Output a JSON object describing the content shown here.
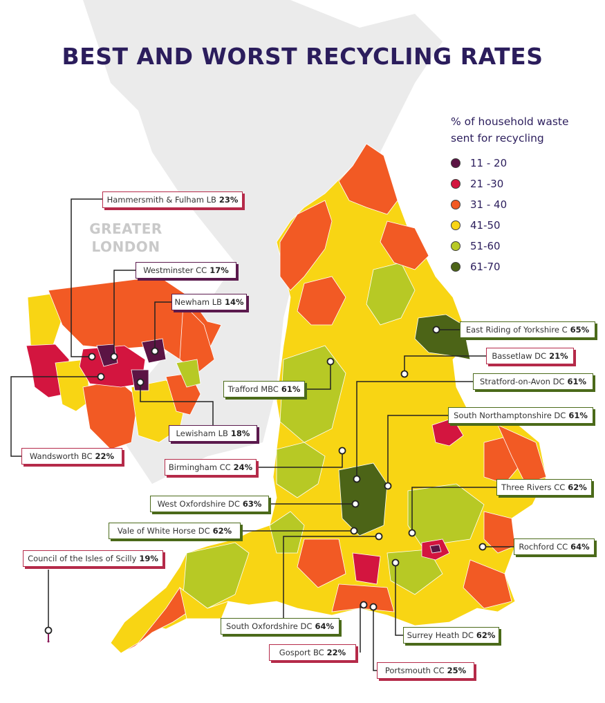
{
  "title": "BEST AND WORST RECYCLING RATES",
  "inset_label_line1": "GREATER",
  "inset_label_line2": "LONDON",
  "legend": {
    "title_line1": "% of household waste",
    "title_line2": "sent for recycling",
    "items": [
      {
        "label": "11 - 20",
        "color": "#5b1444"
      },
      {
        "label": "21 -30",
        "color": "#d3153f"
      },
      {
        "label": "31 - 40",
        "color": "#f25a24"
      },
      {
        "label": "41-50",
        "color": "#f8d514"
      },
      {
        "label": "51-60",
        "color": "#b7c925"
      },
      {
        "label": "61-70",
        "color": "#4c6417"
      }
    ]
  },
  "callouts": [
    {
      "name": "Hammersmith & Fulham LB",
      "pct": "23%"
    },
    {
      "name": "Westminster CC",
      "pct": "17%"
    },
    {
      "name": "Newham LB",
      "pct": "14%"
    },
    {
      "name": "Lewisham LB",
      "pct": "18%"
    },
    {
      "name": "Wandsworth  BC",
      "pct": "22%"
    },
    {
      "name": "Trafford MBC",
      "pct": "61%"
    },
    {
      "name": "Birmingham CC",
      "pct": "24%"
    },
    {
      "name": "West Oxfordshire DC",
      "pct": "63%"
    },
    {
      "name": "Vale of White Horse DC",
      "pct": "62%"
    },
    {
      "name": "Council of the Isles of Scilly",
      "pct": "19%"
    },
    {
      "name": "South Oxfordshire DC",
      "pct": "64%"
    },
    {
      "name": "Gosport BC",
      "pct": "22%"
    },
    {
      "name": "Portsmouth CC",
      "pct": "25%"
    },
    {
      "name": "Surrey Heath DC",
      "pct": "62%"
    },
    {
      "name": "East Riding of Yorkshire C",
      "pct": "65%"
    },
    {
      "name": "Bassetlaw DC",
      "pct": "21%"
    },
    {
      "name": "Stratford-on-Avon DC",
      "pct": "61%"
    },
    {
      "name": "South Northamptonshire DC",
      "pct": "61%"
    },
    {
      "name": "Three Rivers CC",
      "pct": "62%"
    },
    {
      "name": "Rochford CC",
      "pct": "64%"
    }
  ]
}
